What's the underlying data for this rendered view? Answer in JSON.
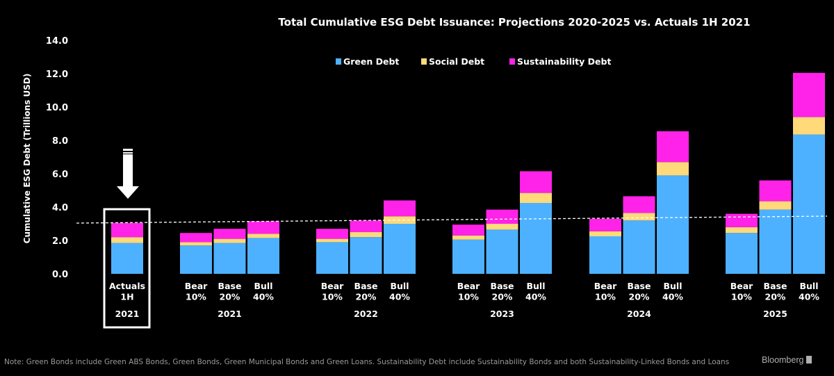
{
  "chart_data": {
    "type": "bar",
    "stacked": true,
    "title": "Total Cumulative ESG Debt Issuance: Projections 2020-2025 vs. Actuals 1H 2021",
    "ylabel": "Cumulative ESG Debt (Trillions USD)",
    "xlabel": "",
    "ylim": [
      0,
      14
    ],
    "yticks": [
      "0.0",
      "2.0",
      "4.0",
      "6.0",
      "8.0",
      "10.0",
      "12.0",
      "14.0"
    ],
    "legend_position": "top-center",
    "colors": {
      "green": "#4db1ff",
      "social": "#ffd97a",
      "sustainability": "#ff22e8"
    },
    "reference_line": 3.0,
    "groups": [
      {
        "label": "2021",
        "bars": [
          {
            "label": [
              "Actuals",
              "1H"
            ],
            "green": 1.85,
            "social": 0.35,
            "sustainability": 0.85,
            "highlighted": true
          }
        ]
      },
      {
        "label": "2021",
        "bars": [
          {
            "label": [
              "Bear",
              "10%"
            ],
            "green": 1.7,
            "social": 0.2,
            "sustainability": 0.55
          },
          {
            "label": [
              "Base",
              "20%"
            ],
            "green": 1.85,
            "social": 0.25,
            "sustainability": 0.6
          },
          {
            "label": [
              "Bull",
              "40%"
            ],
            "green": 2.15,
            "social": 0.25,
            "sustainability": 0.75
          }
        ]
      },
      {
        "label": "2022",
        "bars": [
          {
            "label": [
              "Bear",
              "10%"
            ],
            "green": 1.9,
            "social": 0.2,
            "sustainability": 0.6
          },
          {
            "label": [
              "Base",
              "20%"
            ],
            "green": 2.2,
            "social": 0.3,
            "sustainability": 0.7
          },
          {
            "label": [
              "Bull",
              "40%"
            ],
            "green": 3.0,
            "social": 0.45,
            "sustainability": 0.95
          }
        ]
      },
      {
        "label": "2023",
        "bars": [
          {
            "label": [
              "Bear",
              "10%"
            ],
            "green": 2.05,
            "social": 0.25,
            "sustainability": 0.65
          },
          {
            "label": [
              "Base",
              "20%"
            ],
            "green": 2.65,
            "social": 0.35,
            "sustainability": 0.85
          },
          {
            "label": [
              "Bull",
              "40%"
            ],
            "green": 4.25,
            "social": 0.6,
            "sustainability": 1.3
          }
        ]
      },
      {
        "label": "2024",
        "bars": [
          {
            "label": [
              "Bear",
              "10%"
            ],
            "green": 2.25,
            "social": 0.3,
            "sustainability": 0.75
          },
          {
            "label": [
              "Base",
              "20%"
            ],
            "green": 3.2,
            "social": 0.45,
            "sustainability": 1.0
          },
          {
            "label": [
              "Bull",
              "40%"
            ],
            "green": 5.9,
            "social": 0.8,
            "sustainability": 1.85
          }
        ]
      },
      {
        "label": "2025",
        "bars": [
          {
            "label": [
              "Bear",
              "10%"
            ],
            "green": 2.45,
            "social": 0.35,
            "sustainability": 0.8
          },
          {
            "label": [
              "Base",
              "20%"
            ],
            "green": 3.85,
            "social": 0.5,
            "sustainability": 1.25
          },
          {
            "label": [
              "Bull",
              "40%"
            ],
            "green": 8.35,
            "social": 1.05,
            "sustainability": 2.65
          }
        ]
      }
    ],
    "series": [
      {
        "key": "green",
        "name": "Green Debt"
      },
      {
        "key": "social",
        "name": "Social Debt"
      },
      {
        "key": "sustainability",
        "name": "Sustainability Debt"
      }
    ]
  },
  "footer": {
    "note": "Note: Green Bonds include Green ABS Bonds, Green Bonds, Green Municipal Bonds and Green Loans. Sustainability Debt include Sustainability Bonds and both Sustainability-Linked Bonds and Loans",
    "source": "Bloomberg"
  }
}
